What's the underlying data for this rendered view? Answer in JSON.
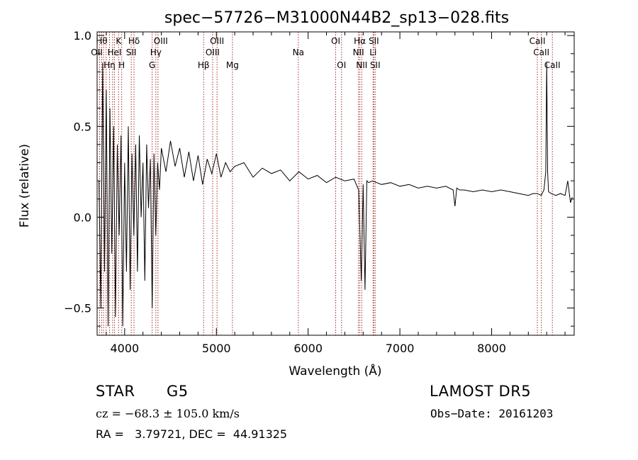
{
  "chart_data": {
    "type": "line",
    "title": "spec−57726−M31000N44B2_sp13−028.fits",
    "xlabel": "Wavelength (Å)",
    "ylabel": "Flux (relative)",
    "xlim": [
      3700,
      8900
    ],
    "ylim": [
      -0.65,
      1.02
    ],
    "xticks": [
      {
        "value": 4000,
        "label": "4000"
      },
      {
        "value": 5000,
        "label": "5000"
      },
      {
        "value": 6000,
        "label": "6000"
      },
      {
        "value": 7000,
        "label": "7000"
      },
      {
        "value": 8000,
        "label": "8000"
      }
    ],
    "yticks": [
      {
        "value": -0.5,
        "label": "−0.5"
      },
      {
        "value": 0.0,
        "label": "0.0"
      },
      {
        "value": 0.5,
        "label": "0.5"
      },
      {
        "value": 1.0,
        "label": "1.0"
      }
    ],
    "series": [
      {
        "color": "#000000",
        "x": [
          3720,
          3740,
          3760,
          3780,
          3800,
          3820,
          3840,
          3860,
          3880,
          3900,
          3920,
          3940,
          3960,
          3980,
          4000,
          4020,
          4040,
          4060,
          4080,
          4100,
          4120,
          4140,
          4160,
          4180,
          4200,
          4220,
          4240,
          4260,
          4280,
          4300,
          4320,
          4340,
          4360,
          4380,
          4400,
          4450,
          4500,
          4550,
          4600,
          4650,
          4700,
          4750,
          4800,
          4850,
          4900,
          4950,
          5000,
          5050,
          5100,
          5150,
          5200,
          5300,
          5400,
          5500,
          5600,
          5700,
          5800,
          5900,
          6000,
          6100,
          6200,
          6300,
          6400,
          6500,
          6550,
          6580,
          6600,
          6620,
          6640,
          6660,
          6700,
          6800,
          6900,
          7000,
          7100,
          7200,
          7300,
          7400,
          7500,
          7580,
          7600,
          7620,
          7650,
          7700,
          7800,
          7900,
          8000,
          8100,
          8200,
          8300,
          8400,
          8450,
          8500,
          8540,
          8570,
          8590,
          8600,
          8610,
          8620,
          8650,
          8700,
          8750,
          8800,
          8830,
          8860,
          8880
        ],
        "y": [
          0.2,
          -0.5,
          0.85,
          -0.3,
          0.7,
          -0.6,
          0.6,
          -0.2,
          0.5,
          -0.55,
          0.4,
          -0.1,
          0.45,
          -0.6,
          0.3,
          -0.3,
          0.5,
          -0.4,
          0.35,
          -0.1,
          0.4,
          -0.3,
          0.45,
          0.0,
          0.3,
          -0.35,
          0.4,
          0.05,
          0.32,
          -0.5,
          0.35,
          -0.1,
          0.3,
          0.15,
          0.38,
          0.25,
          0.42,
          0.28,
          0.38,
          0.22,
          0.36,
          0.2,
          0.34,
          0.18,
          0.32,
          0.24,
          0.35,
          0.22,
          0.3,
          0.25,
          0.28,
          0.3,
          0.22,
          0.27,
          0.24,
          0.26,
          0.2,
          0.25,
          0.21,
          0.23,
          0.19,
          0.22,
          0.2,
          0.21,
          0.15,
          -0.35,
          0.18,
          -0.4,
          0.2,
          0.19,
          0.2,
          0.18,
          0.19,
          0.17,
          0.18,
          0.16,
          0.17,
          0.16,
          0.17,
          0.15,
          0.06,
          0.16,
          0.15,
          0.15,
          0.14,
          0.15,
          0.14,
          0.15,
          0.14,
          0.13,
          0.12,
          0.13,
          0.13,
          0.12,
          0.15,
          0.25,
          0.85,
          0.25,
          0.14,
          0.13,
          0.12,
          0.13,
          0.12,
          0.2,
          0.08,
          0.11
        ]
      }
    ],
    "lines": [
      {
        "x": 3727,
        "label": "OII",
        "row": 2,
        "dx": -4
      },
      {
        "x": 3750,
        "label": "Hθ",
        "row": 1,
        "dx": 0
      },
      {
        "x": 3771,
        "label": "",
        "row": 0,
        "dx": 0
      },
      {
        "x": 3798,
        "label": "",
        "row": 0,
        "dx": 0
      },
      {
        "x": 3835,
        "label": "Hη",
        "row": 3,
        "dx": 0
      },
      {
        "x": 3869,
        "label": "",
        "row": 0,
        "dx": 0
      },
      {
        "x": 3889,
        "label": "HeI",
        "row": 2,
        "dx": 0
      },
      {
        "x": 3934,
        "label": "K",
        "row": 1,
        "dx": 0
      },
      {
        "x": 3968,
        "label": "H",
        "row": 3,
        "dx": 0
      },
      {
        "x": 4072,
        "label": "SII",
        "row": 2,
        "dx": 0
      },
      {
        "x": 4102,
        "label": "Hδ",
        "row": 1,
        "dx": 0
      },
      {
        "x": 4300,
        "label": "G",
        "row": 3,
        "dx": 0
      },
      {
        "x": 4340,
        "label": "Hγ",
        "row": 2,
        "dx": 0
      },
      {
        "x": 4363,
        "label": "OIII",
        "row": 1,
        "dx": 4
      },
      {
        "x": 4861,
        "label": "Hβ",
        "row": 3,
        "dx": 0
      },
      {
        "x": 4959,
        "label": "OIII",
        "row": 2,
        "dx": 0
      },
      {
        "x": 5007,
        "label": "OIII",
        "row": 1,
        "dx": 0
      },
      {
        "x": 5175,
        "label": "Mg",
        "row": 3,
        "dx": 0
      },
      {
        "x": 5893,
        "label": "Na",
        "row": 2,
        "dx": 0
      },
      {
        "x": 6300,
        "label": "OI",
        "row": 1,
        "dx": 0
      },
      {
        "x": 6364,
        "label": "OI",
        "row": 3,
        "dx": 0
      },
      {
        "x": 6548,
        "label": "NII",
        "row": 2,
        "dx": 0
      },
      {
        "x": 6563,
        "label": "Hα",
        "row": 1,
        "dx": 0
      },
      {
        "x": 6584,
        "label": "NII",
        "row": 3,
        "dx": 0
      },
      {
        "x": 6708,
        "label": "Li",
        "row": 2,
        "dx": 0
      },
      {
        "x": 6716,
        "label": "SII",
        "row": 1,
        "dx": 0
      },
      {
        "x": 6731,
        "label": "SII",
        "row": 3,
        "dx": 0
      },
      {
        "x": 8498,
        "label": "CaII",
        "row": 1,
        "dx": 0
      },
      {
        "x": 8542,
        "label": "CaII",
        "row": 2,
        "dx": 0
      },
      {
        "x": 8662,
        "label": "CaII",
        "row": 3,
        "dx": 0
      }
    ],
    "line_color": "#a52a2a",
    "grid": false
  },
  "info": {
    "class": "STAR",
    "subclass": "G5",
    "survey": "LAMOST DR5",
    "cz": "cz = −68.3 ± 105.0 km/s",
    "obs_date": "Obs−Date: 20161203",
    "coords": "RA =   3.79721, DEC =  44.91325"
  }
}
